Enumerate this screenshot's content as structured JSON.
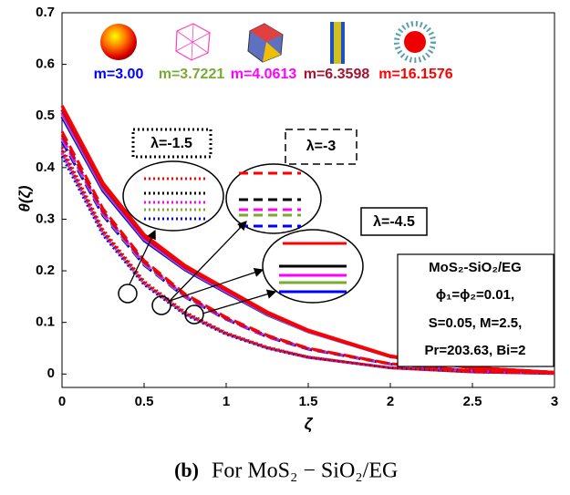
{
  "chart_data": {
    "type": "line",
    "y_label": "θ(ζ)",
    "x_label": "ζ",
    "caption_label": "(b)",
    "caption_text": "For MoS₂ − SiO₂/EG",
    "xlim": [
      0,
      3
    ],
    "ylim": [
      -0.026,
      0.7
    ],
    "xticks": [
      0,
      0.5,
      1,
      1.5,
      2,
      2.5,
      3
    ],
    "yticks": [
      0,
      0.1,
      0.2,
      0.3,
      0.4,
      0.5,
      0.6,
      0.7
    ],
    "x": [
      0,
      0.25,
      0.5,
      0.75,
      1,
      1.25,
      1.5,
      2,
      2.5,
      3
    ],
    "groups": [
      {
        "label": "λ=-1.5",
        "dash": "dotted"
      },
      {
        "label": "λ=-3",
        "dash": "dashed"
      },
      {
        "label": "λ=-4.5",
        "dash": "solid"
      }
    ],
    "series": [
      {
        "name": "m=3.00",
        "color": "#0000ff",
        "lines": [
          {
            "values": [
              0.422,
              0.269,
              0.173,
              0.115,
              0.077,
              0.05,
              0.032,
              0.012,
              0.004,
              0.001
            ]
          },
          {
            "values": [
              0.451,
              0.307,
              0.211,
              0.149,
              0.106,
              0.072,
              0.048,
              0.019,
              0.006,
              0.002
            ]
          },
          {
            "values": [
              0.499,
              0.355,
              0.259,
              0.202,
              0.158,
              0.115,
              0.082,
              0.034,
              0.012,
              0.003
            ]
          }
        ]
      },
      {
        "name": "m=3.7221",
        "color": "#77ac30",
        "lines": [
          {
            "values": [
              0.427,
              0.272,
              0.175,
              0.116,
              0.078,
              0.05,
              0.032,
              0.012,
              0.004,
              0.001
            ]
          },
          {
            "values": [
              0.456,
              0.31,
              0.213,
              0.15,
              0.107,
              0.073,
              0.049,
              0.019,
              0.006,
              0.002
            ]
          },
          {
            "values": [
              0.504,
              0.359,
              0.262,
              0.204,
              0.16,
              0.116,
              0.082,
              0.034,
              0.012,
              0.003
            ]
          }
        ]
      },
      {
        "name": "m=4.0613",
        "color": "#ff00ff",
        "lines": [
          {
            "values": [
              0.429,
              0.273,
              0.176,
              0.117,
              0.078,
              0.051,
              0.032,
              0.012,
              0.004,
              0.001
            ]
          },
          {
            "values": [
              0.458,
              0.312,
              0.215,
              0.151,
              0.107,
              0.073,
              0.049,
              0.02,
              0.006,
              0.002
            ]
          },
          {
            "values": [
              0.507,
              0.361,
              0.263,
              0.205,
              0.161,
              0.117,
              0.083,
              0.034,
              0.012,
              0.003
            ]
          }
        ]
      },
      {
        "name": "m=6.3598",
        "color": "#a2142f",
        "lines": [
          {
            "values": [
              0.433,
              0.276,
              0.177,
              0.118,
              0.079,
              0.051,
              0.033,
              0.012,
              0.004,
              0.001
            ]
          },
          {
            "values": [
              0.463,
              0.315,
              0.217,
              0.153,
              0.108,
              0.074,
              0.049,
              0.02,
              0.006,
              0.002
            ]
          },
          {
            "values": [
              0.512,
              0.364,
              0.266,
              0.207,
              0.163,
              0.118,
              0.084,
              0.034,
              0.012,
              0.003
            ]
          }
        ]
      },
      {
        "name": "m=16.1576",
        "color": "#ff0000",
        "lines": [
          {
            "values": [
              0.44,
              0.28,
              0.18,
              0.12,
              0.08,
              0.052,
              0.033,
              0.012,
              0.004,
              0.001
            ]
          },
          {
            "values": [
              0.47,
              0.32,
              0.22,
              0.155,
              0.11,
              0.075,
              0.05,
              0.02,
              0.006,
              0.002
            ]
          },
          {
            "values": [
              0.52,
              0.37,
              0.27,
              0.21,
              0.165,
              0.12,
              0.085,
              0.035,
              0.012,
              0.003
            ]
          }
        ]
      }
    ],
    "info_box": [
      "MoS₂-SiO₂/EG",
      "ϕ₁=ϕ₂=0.01,",
      "S=0.05, M=2.5,",
      "Pr=203.63, Bi=2"
    ]
  }
}
